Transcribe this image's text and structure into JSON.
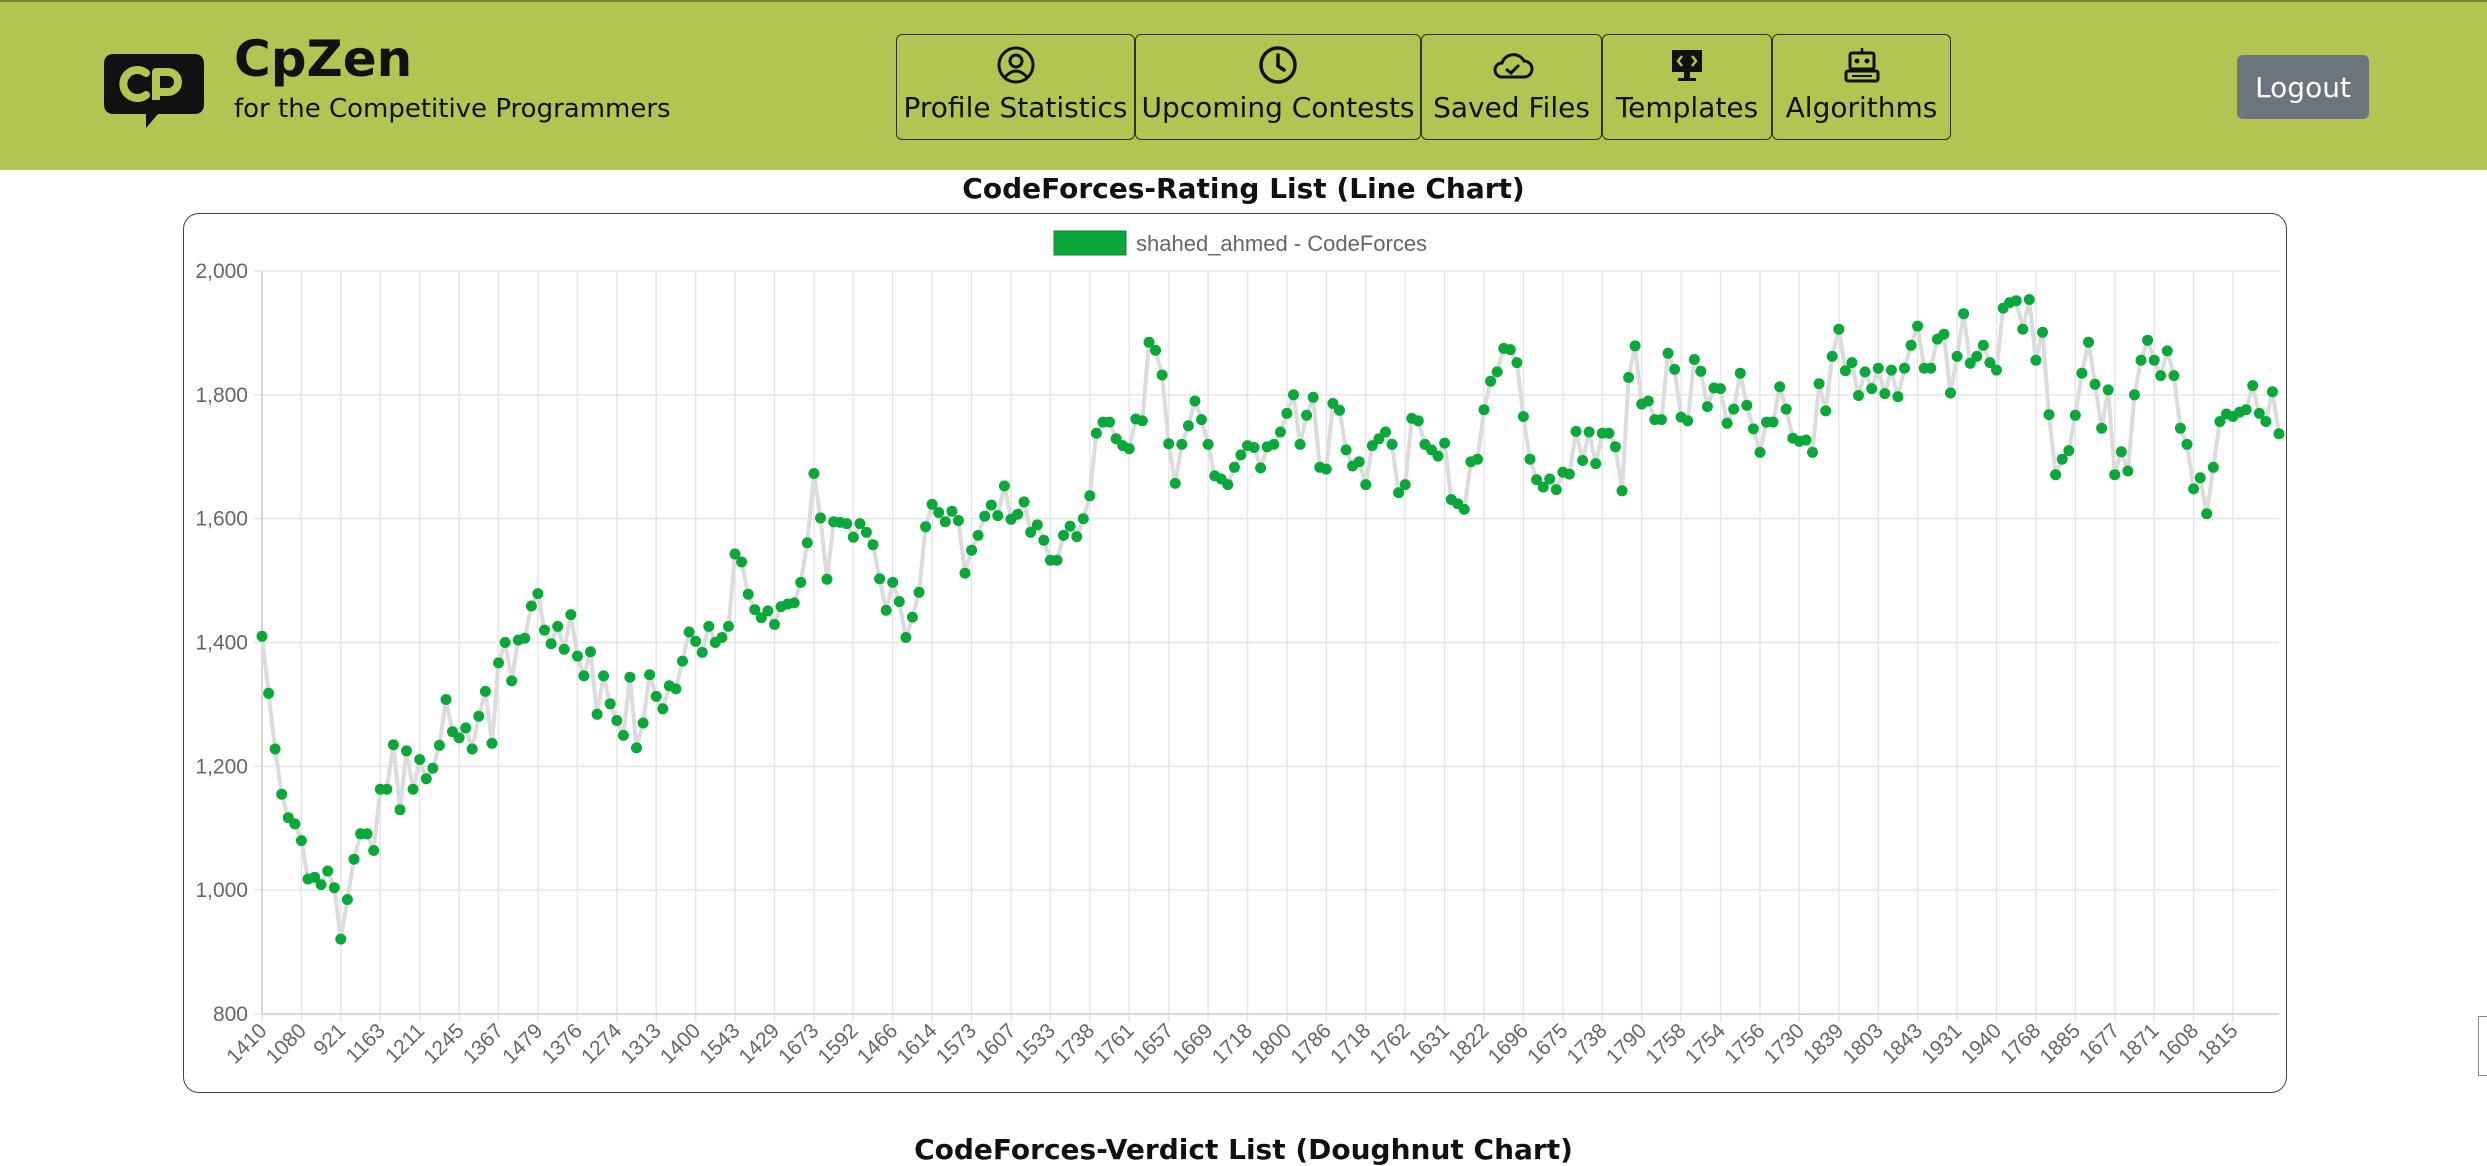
{
  "brand": {
    "name": "CpZen",
    "tagline": "for the Competitive Programmers",
    "logo_icon": "cp-logo-icon"
  },
  "nav": {
    "items": [
      {
        "label": "Profile Statistics",
        "icon": "user-circle-icon"
      },
      {
        "label": "Upcoming Contests",
        "icon": "clock-icon"
      },
      {
        "label": "Saved Files",
        "icon": "cloud-check-icon"
      },
      {
        "label": "Templates",
        "icon": "code-monitor-icon"
      },
      {
        "label": "Algorithms",
        "icon": "robot-icon"
      }
    ],
    "logout_label": "Logout"
  },
  "colors": {
    "navbar": "#b3c452",
    "series": "#0aa83a",
    "line": "#dcdcdc",
    "logout": "#6c757d"
  },
  "chart_title": "CodeForces-Rating List (Line Chart)",
  "next_chart_title": "CodeForces-Verdict List (Doughnut Chart)",
  "chart_data": {
    "type": "line",
    "title": "CodeForces-Rating List (Line Chart)",
    "legend": {
      "position": "top-center",
      "label": "shahed_ahmed - CodeForces"
    },
    "grid": true,
    "ylim": [
      800,
      2000
    ],
    "y_ticks": [
      "800",
      "1,000",
      "1,200",
      "1,400",
      "1,600",
      "1,800",
      "2,000"
    ],
    "x_tick_labels": [
      "1410",
      "1080",
      "921",
      "1163",
      "1211",
      "1245",
      "1367",
      "1479",
      "1376",
      "1274",
      "1313",
      "1400",
      "1543",
      "1429",
      "1673",
      "1592",
      "1466",
      "1614",
      "1573",
      "1607",
      "1533",
      "1738",
      "1761",
      "1657",
      "1669",
      "1718",
      "1800",
      "1786",
      "1718",
      "1762",
      "1631",
      "1822",
      "1696",
      "1675",
      "1738",
      "1790",
      "1758",
      "1754",
      "1756",
      "1730",
      "1839",
      "1803",
      "1843",
      "1931",
      "1940",
      "1768",
      "1885",
      "1677",
      "1871",
      "1608",
      "1815"
    ],
    "series": [
      {
        "name": "shahed_ahmed - CodeForces",
        "values": [
          1410,
          1318,
          1228,
          1155,
          1117,
          1107,
          1080,
          1018,
          1021,
          1009,
          1031,
          1004,
          921,
          985,
          1050,
          1091,
          1091,
          1064,
          1163,
          1163,
          1235,
          1130,
          1225,
          1163,
          1211,
          1180,
          1197,
          1234,
          1308,
          1256,
          1246,
          1262,
          1228,
          1281,
          1321,
          1237,
          1367,
          1400,
          1338,
          1404,
          1407,
          1459,
          1479,
          1420,
          1398,
          1426,
          1389,
          1445,
          1378,
          1346,
          1385,
          1284,
          1346,
          1301,
          1274,
          1250,
          1344,
          1230,
          1270,
          1348,
          1313,
          1293,
          1330,
          1325,
          1370,
          1417,
          1402,
          1384,
          1426,
          1400,
          1408,
          1426,
          1543,
          1530,
          1478,
          1453,
          1440,
          1451,
          1429,
          1458,
          1462,
          1464,
          1497,
          1561,
          1673,
          1601,
          1502,
          1595,
          1594,
          1592,
          1570,
          1592,
          1578,
          1558,
          1503,
          1452,
          1497,
          1466,
          1408,
          1441,
          1481,
          1587,
          1623,
          1610,
          1595,
          1612,
          1597,
          1512,
          1549,
          1573,
          1604,
          1622,
          1605,
          1653,
          1599,
          1607,
          1627,
          1578,
          1590,
          1565,
          1533,
          1533,
          1573,
          1588,
          1571,
          1600,
          1637,
          1738,
          1756,
          1756,
          1729,
          1718,
          1713,
          1761,
          1758,
          1885,
          1872,
          1832,
          1721,
          1657,
          1720,
          1750,
          1790,
          1760,
          1720,
          1669,
          1664,
          1655,
          1683,
          1703,
          1718,
          1715,
          1682,
          1716,
          1720,
          1740,
          1770,
          1800,
          1720,
          1767,
          1796,
          1683,
          1680,
          1786,
          1775,
          1711,
          1685,
          1692,
          1655,
          1718,
          1729,
          1740,
          1720,
          1642,
          1655,
          1762,
          1758,
          1720,
          1711,
          1701,
          1722,
          1631,
          1624,
          1615,
          1692,
          1696,
          1776,
          1822,
          1837,
          1875,
          1873,
          1852,
          1765,
          1696,
          1663,
          1651,
          1664,
          1647,
          1675,
          1672,
          1741,
          1694,
          1740,
          1689,
          1738,
          1738,
          1716,
          1645,
          1828,
          1879,
          1785,
          1790,
          1760,
          1760,
          1867,
          1841,
          1764,
          1758,
          1857,
          1838,
          1781,
          1811,
          1810,
          1754,
          1777,
          1835,
          1783,
          1745,
          1707,
          1756,
          1756,
          1813,
          1777,
          1730,
          1725,
          1727,
          1707,
          1818,
          1774,
          1862,
          1906,
          1839,
          1852,
          1799,
          1837,
          1810,
          1843,
          1802,
          1840,
          1797,
          1843,
          1880,
          1911,
          1843,
          1843,
          1890,
          1898,
          1803,
          1862,
          1931,
          1851,
          1862,
          1880,
          1852,
          1840,
          1940,
          1949,
          1952,
          1906,
          1954,
          1856,
          1901,
          1768,
          1671,
          1696,
          1710,
          1767,
          1835,
          1885,
          1817,
          1746,
          1808,
          1671,
          1708,
          1677,
          1800,
          1856,
          1888,
          1856,
          1831,
          1871,
          1831,
          1746,
          1720,
          1648,
          1666,
          1608,
          1683,
          1757,
          1769,
          1765,
          1772,
          1776,
          1815,
          1770,
          1757,
          1805,
          1737
        ]
      }
    ]
  }
}
